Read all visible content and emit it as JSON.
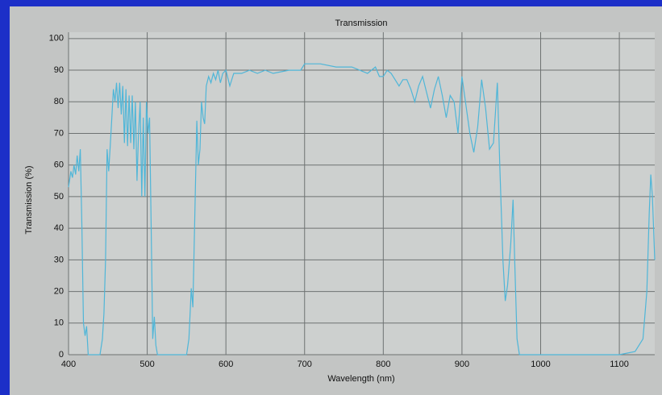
{
  "chart_data": {
    "type": "line",
    "title": "Transmission",
    "x_label": "Wavelength (nm)",
    "y_label": "Transmission (%)",
    "x": [
      400,
      403,
      405,
      407,
      409,
      411,
      413,
      415,
      417,
      419,
      421,
      423,
      425,
      440,
      443,
      445,
      447,
      449,
      451,
      453,
      455,
      457,
      459,
      461,
      463,
      465,
      467,
      469,
      471,
      473,
      475,
      477,
      479,
      481,
      483,
      485,
      487,
      489,
      491,
      493,
      495,
      497,
      499,
      501,
      503,
      505,
      507,
      509,
      511,
      513,
      550,
      553,
      556,
      558,
      561,
      563,
      565,
      567,
      569,
      571,
      573,
      575,
      578,
      581,
      584,
      587,
      590,
      593,
      596,
      600,
      605,
      610,
      620,
      630,
      640,
      650,
      660,
      680,
      695,
      700,
      720,
      740,
      760,
      770,
      780,
      790,
      795,
      800,
      805,
      810,
      815,
      820,
      825,
      830,
      835,
      840,
      845,
      850,
      855,
      860,
      865,
      870,
      875,
      880,
      885,
      890,
      895,
      900,
      905,
      910,
      915,
      920,
      925,
      930,
      935,
      940,
      945,
      948,
      952,
      955,
      958,
      962,
      965,
      967,
      970,
      973,
      1100,
      1120,
      1130,
      1135,
      1138,
      1140,
      1142,
      1145
    ],
    "values": [
      53,
      58,
      56,
      60,
      57,
      63,
      58,
      65,
      40,
      10,
      6,
      9,
      0,
      0,
      5,
      13,
      30,
      65,
      58,
      66,
      75,
      84,
      80,
      86,
      78,
      86,
      76,
      85,
      67,
      84,
      66,
      82,
      67,
      82,
      65,
      80,
      55,
      70,
      80,
      50,
      75,
      50,
      80,
      70,
      75,
      40,
      5,
      12,
      3,
      0,
      0,
      5,
      21,
      15,
      50,
      74,
      60,
      65,
      80,
      75,
      73,
      85,
      88,
      86,
      89,
      87,
      90,
      86,
      89,
      90,
      85,
      89,
      89,
      90,
      89,
      90,
      89,
      90,
      90,
      92,
      92,
      91,
      91,
      90,
      89,
      91,
      88,
      88,
      90,
      89,
      87,
      85,
      87,
      87,
      84,
      80,
      85,
      88,
      83,
      78,
      84,
      88,
      82,
      75,
      82,
      80,
      70,
      88,
      79,
      70,
      64,
      72,
      87,
      78,
      65,
      67,
      86,
      60,
      30,
      17,
      22,
      35,
      49,
      30,
      5,
      0,
      0,
      1,
      5,
      20,
      45,
      57,
      50,
      30
    ],
    "color": "#4fb6d8",
    "xlim": [
      400,
      1145
    ],
    "ylim": [
      0,
      102
    ],
    "xticks": [
      400,
      500,
      600,
      700,
      800,
      900,
      1000,
      1100
    ],
    "yticks": [
      0,
      10,
      20,
      30,
      40,
      50,
      60,
      70,
      80,
      90,
      100
    ],
    "grid": true
  }
}
